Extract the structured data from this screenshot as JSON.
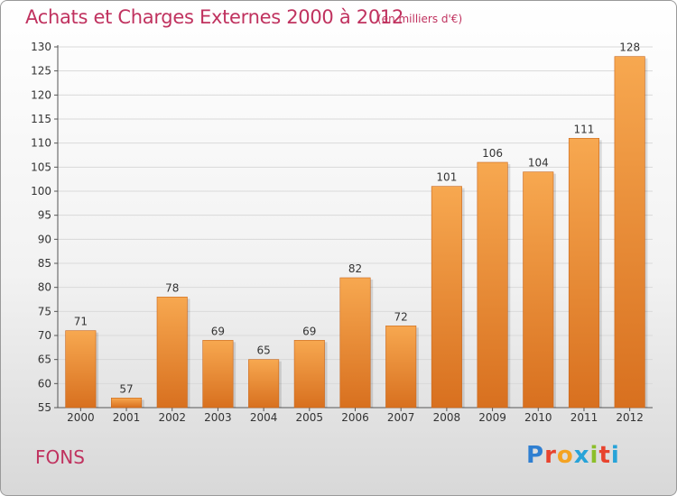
{
  "header": {
    "title": "Achats et Charges Externes 2000 à 2012",
    "unit": "(en milliers d'€)"
  },
  "footer": {
    "commune": "FONS",
    "logo_letters": [
      "P",
      "r",
      "o",
      "x",
      "i",
      "t",
      "i"
    ],
    "logo_colors": [
      "#2f7fd1",
      "#e8432e",
      "#f4a322",
      "#27a3d8",
      "#8cbf2a",
      "#e8432e",
      "#27a3d8"
    ]
  },
  "colors": {
    "bar_top": "#f7a850",
    "bar_bottom": "#d8701f",
    "title": "#c0325f",
    "grid": "#d9d9d9",
    "text": "#333333"
  },
  "chart_data": {
    "type": "bar",
    "title": "Achats et Charges Externes 2000 à 2012",
    "subtitle": "(en milliers d'€)",
    "categories": [
      "2000",
      "2001",
      "2002",
      "2003",
      "2004",
      "2005",
      "2006",
      "2007",
      "2008",
      "2009",
      "2010",
      "2011",
      "2012"
    ],
    "values": [
      71,
      57,
      78,
      69,
      65,
      69,
      82,
      72,
      101,
      106,
      104,
      111,
      128
    ],
    "ylim": [
      55,
      130
    ],
    "yticks": [
      55,
      60,
      65,
      70,
      75,
      80,
      85,
      90,
      95,
      100,
      105,
      110,
      115,
      120,
      125,
      130
    ],
    "grid": true,
    "legend": "none"
  }
}
